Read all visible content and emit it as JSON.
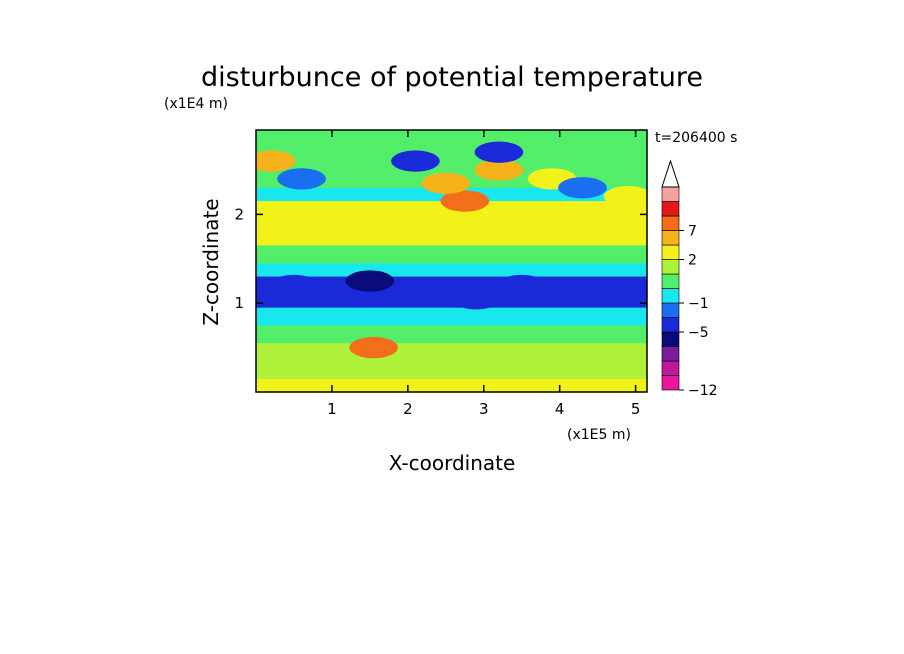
{
  "chart_data": {
    "type": "heatmap",
    "title": "disturbunce of potential temperature",
    "xlabel": "X-coordinate",
    "ylabel": "Z-coordinate",
    "x_unit": "(x1E5 m)",
    "y_unit": "(x1E4 m)",
    "time_label": "t=206400 s",
    "xlim": [
      0,
      5.15
    ],
    "ylim": [
      0,
      2.95
    ],
    "x_ticks": [
      "1",
      "2",
      "3",
      "4",
      "5"
    ],
    "x_tick_values": [
      1,
      2,
      3,
      4,
      5
    ],
    "y_ticks": [
      "1",
      "2"
    ],
    "y_tick_values": [
      1,
      2
    ],
    "colorbar": {
      "levels": [
        -12,
        -10,
        -8,
        -6,
        -5,
        -3,
        -1,
        0,
        1,
        2,
        4,
        7,
        9,
        11
      ],
      "labels": [
        {
          "text": "7",
          "value": 7
        },
        {
          "text": "2",
          "value": 2
        },
        {
          "text": "−1",
          "value": -1
        },
        {
          "text": "−5",
          "value": -5
        },
        {
          "text": "−12",
          "value": -12
        }
      ],
      "colors": [
        "#e8189c",
        "#c0189c",
        "#7a1a9c",
        "#0a0a7a",
        "#1a2ad8",
        "#1a6ef0",
        "#18e8ee",
        "#52ee6a",
        "#b0f23a",
        "#f2f21a",
        "#f6b21a",
        "#f26e18",
        "#e41818",
        "#f6a0a0"
      ],
      "extend": "max"
    },
    "fields": {
      "layers": [
        {
          "z": [
            0.0,
            0.15
          ],
          "value": 2.5
        },
        {
          "z": [
            0.15,
            0.55
          ],
          "value": 1.5
        },
        {
          "z": [
            0.55,
            0.75
          ],
          "value": 0.5
        },
        {
          "z": [
            0.75,
            0.95
          ],
          "value": -0.5
        },
        {
          "z": [
            0.95,
            1.3
          ],
          "value": -4
        },
        {
          "z": [
            1.3,
            1.45
          ],
          "value": -0.5
        },
        {
          "z": [
            1.45,
            1.65
          ],
          "value": 0.5
        },
        {
          "z": [
            1.65,
            2.15
          ],
          "value": 2.5
        },
        {
          "z": [
            2.15,
            2.3
          ],
          "value": -0.5
        },
        {
          "z": [
            2.3,
            2.95
          ],
          "value": 0.5
        }
      ],
      "warm_blobs": [
        {
          "x": 2.75,
          "z": 2.15,
          "value": 7
        },
        {
          "x": 2.5,
          "z": 2.35,
          "value": 4.5
        },
        {
          "x": 3.2,
          "z": 2.5,
          "value": 4
        },
        {
          "x": 0.2,
          "z": 2.6,
          "value": 4
        },
        {
          "x": 3.9,
          "z": 2.4,
          "value": 3
        },
        {
          "x": 4.9,
          "z": 2.2,
          "value": 3
        },
        {
          "x": 1.55,
          "z": 0.5,
          "value": 7
        }
      ],
      "cold_blobs": [
        {
          "x": 2.4,
          "z": 1.15,
          "value": -5
        },
        {
          "x": 2.9,
          "z": 1.05,
          "value": -5
        },
        {
          "x": 3.5,
          "z": 1.2,
          "value": -5
        },
        {
          "x": 0.5,
          "z": 1.2,
          "value": -5
        },
        {
          "x": 1.0,
          "z": 1.15,
          "value": -5
        },
        {
          "x": 1.5,
          "z": 1.25,
          "value": -6
        },
        {
          "x": 2.1,
          "z": 2.6,
          "value": -5
        },
        {
          "x": 3.2,
          "z": 2.7,
          "value": -5
        },
        {
          "x": 4.3,
          "z": 2.3,
          "value": -3
        },
        {
          "x": 0.6,
          "z": 2.4,
          "value": -3
        }
      ]
    }
  }
}
